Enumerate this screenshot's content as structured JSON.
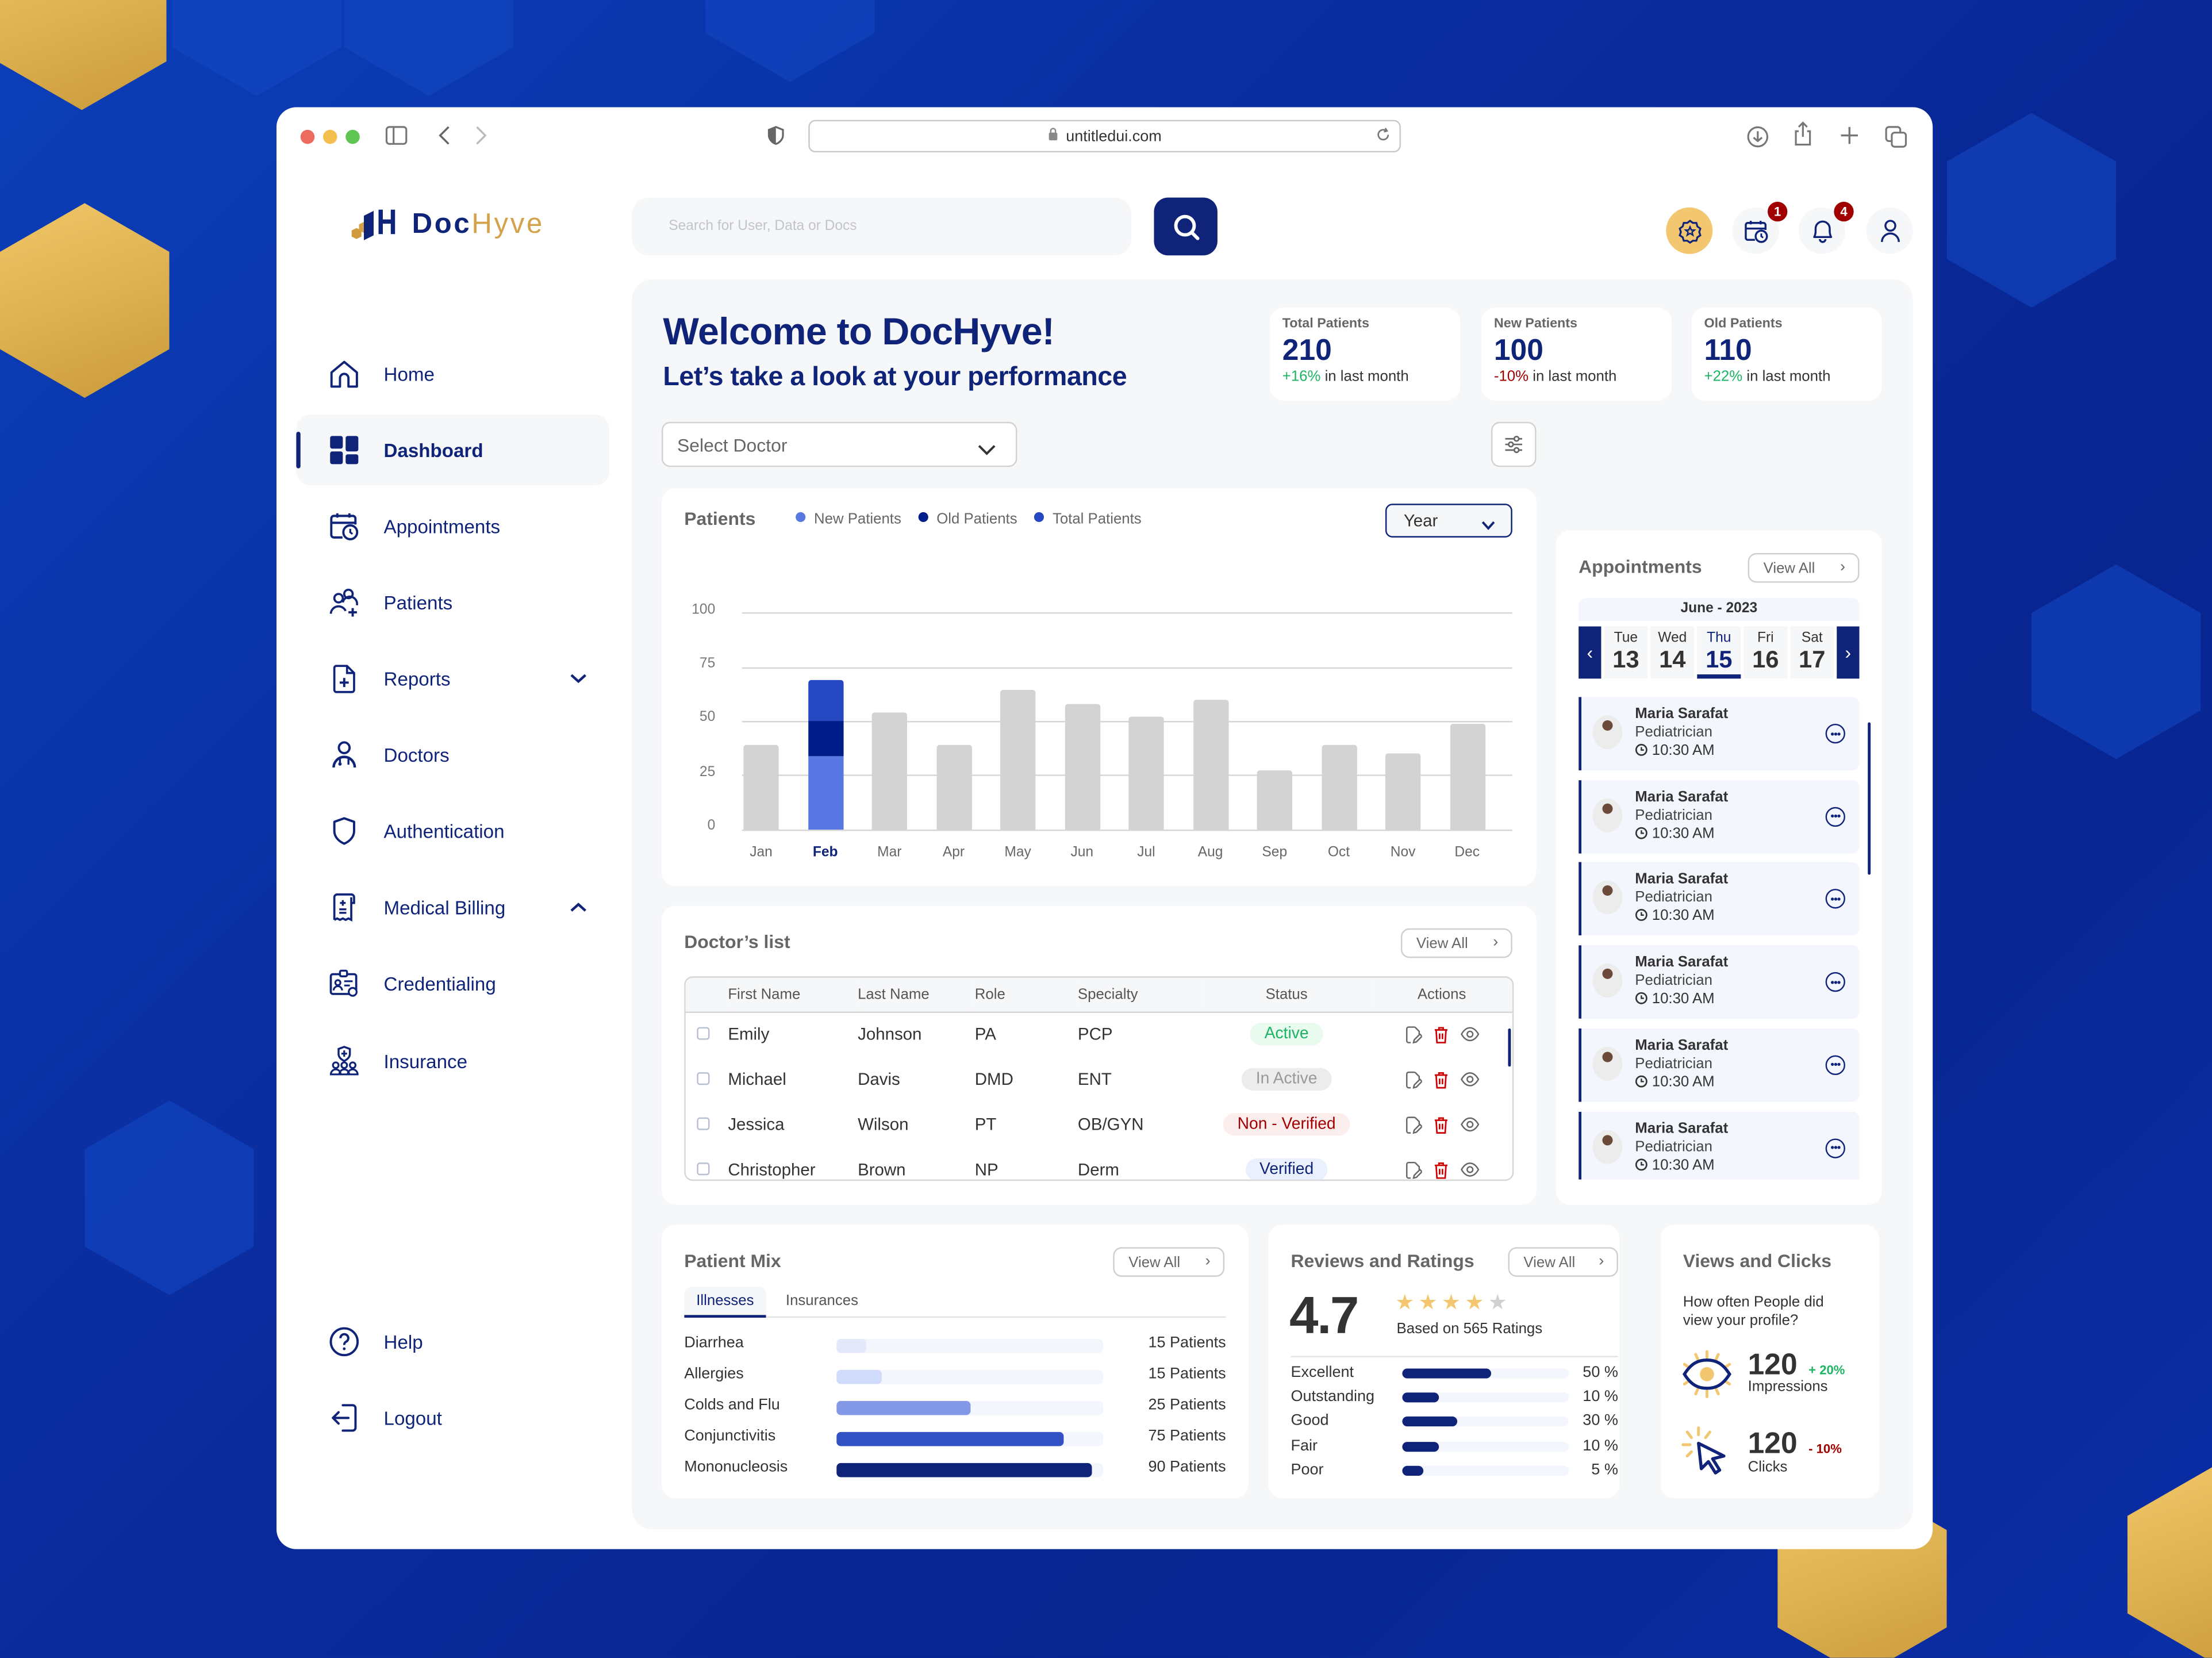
{
  "browser": {
    "url": "untitledui.com",
    "icons": [
      "sidebar-toggle-icon",
      "back-icon",
      "forward-icon",
      "shield-icon",
      "lock-icon",
      "reload-icon",
      "download-icon",
      "share-icon",
      "new-tab-icon",
      "tabs-overview-icon"
    ]
  },
  "app": {
    "logo_doc": "Doc",
    "logo_hyve": "Hyve",
    "search_placeholder": "Search for User, Data or Docs",
    "header_icons": [
      {
        "name": "premium-badge-icon",
        "badge": null
      },
      {
        "name": "calendar-clock-icon",
        "badge": "1"
      },
      {
        "name": "bell-icon",
        "badge": "4"
      },
      {
        "name": "user-icon",
        "badge": null
      }
    ],
    "colors": {
      "primary": "#0f2479",
      "gold": "#f3c76f",
      "positive": "#1db464",
      "negative": "#a10000"
    }
  },
  "sidebar": {
    "items": [
      {
        "label": "Home",
        "icon": "home-icon"
      },
      {
        "label": "Dashboard",
        "icon": "dashboard-icon",
        "active": true
      },
      {
        "label": "Appointments",
        "icon": "calendar-clock-icon"
      },
      {
        "label": "Patients",
        "icon": "patients-icon"
      },
      {
        "label": "Reports",
        "icon": "report-icon",
        "chevron": "down"
      },
      {
        "label": "Doctors",
        "icon": "doctor-icon"
      },
      {
        "label": "Authentication",
        "icon": "shield-icon"
      },
      {
        "label": "Medical Billing",
        "icon": "billing-icon",
        "chevron": "up"
      },
      {
        "label": "Credentialing",
        "icon": "credential-icon"
      },
      {
        "label": "Insurance",
        "icon": "insurance-icon"
      }
    ],
    "bottom": [
      {
        "label": "Help",
        "icon": "help-icon"
      },
      {
        "label": "Logout",
        "icon": "logout-icon"
      }
    ]
  },
  "welcome": {
    "title": "Welcome to DocHyve!",
    "subtitle": "Let’s take a look at your performance"
  },
  "stats": [
    {
      "label": "Total Patients",
      "value": "210",
      "change": "+16%",
      "suffix": " in last month",
      "trend": "pos"
    },
    {
      "label": "New Patients",
      "value": "100",
      "change": "-10%",
      "suffix": " in last month",
      "trend": "neg"
    },
    {
      "label": "Old Patients",
      "value": "110",
      "change": "+22%",
      "suffix": " in last month",
      "trend": "pos"
    }
  ],
  "select_doctor": {
    "placeholder": "Select Doctor"
  },
  "patients_chart": {
    "title": "Patients",
    "period": "Year",
    "legend": [
      {
        "label": "New Patients",
        "color": "#5a78e3"
      },
      {
        "label": "Old Patients",
        "color": "#001e8a"
      },
      {
        "label": "Total Patients",
        "color": "#2547c2"
      }
    ],
    "y_ticks": [
      "100",
      "75",
      "50",
      "25",
      "0"
    ]
  },
  "chart_data": {
    "type": "bar",
    "title": "Patients",
    "categories": [
      "Jan",
      "Feb",
      "Mar",
      "Apr",
      "May",
      "Jun",
      "Jul",
      "Aug",
      "Sep",
      "Oct",
      "Nov",
      "Dec"
    ],
    "values": [
      39,
      69,
      54,
      39,
      64,
      58,
      52,
      60,
      27,
      39,
      35,
      49
    ],
    "highlight": {
      "category": "Feb",
      "segments": [
        {
          "name": "New Patients",
          "value": 34
        },
        {
          "name": "Old Patients",
          "value": 16
        },
        {
          "name": "Total Patients",
          "value": 19
        }
      ]
    },
    "series_legend": [
      "New Patients",
      "Old Patients",
      "Total Patients"
    ],
    "xlabel": "",
    "ylabel": "",
    "ylim": [
      0,
      100
    ],
    "y_ticks": [
      0,
      25,
      50,
      75,
      100
    ],
    "grid": true,
    "legend_position": "top"
  },
  "doctors_list": {
    "title": "Doctor’s list",
    "view_all": "View All",
    "columns": [
      "First Name",
      "Last Name",
      "Role",
      "Specialty",
      "Status",
      "Actions"
    ],
    "rows": [
      {
        "first": "Emily",
        "last": "Johnson",
        "role": "PA",
        "specialty": "PCP",
        "status": "Active",
        "status_type": "active"
      },
      {
        "first": "Michael",
        "last": "Davis",
        "role": "DMD",
        "specialty": "ENT",
        "status": "In Active",
        "status_type": "inactive"
      },
      {
        "first": "Jessica",
        "last": "Wilson",
        "role": "PT",
        "specialty": "OB/GYN",
        "status": "Non - Verified",
        "status_type": "nonverified"
      },
      {
        "first": "Christopher",
        "last": "Brown",
        "role": "NP",
        "specialty": "Derm",
        "status": "Verified",
        "status_type": "verified"
      }
    ]
  },
  "appointments": {
    "title": "Appointments",
    "view_all": "View All",
    "month": "June - 2023",
    "days": [
      {
        "name": "Tue",
        "date": "13"
      },
      {
        "name": "Wed",
        "date": "14"
      },
      {
        "name": "Thu",
        "date": "15",
        "selected": true
      },
      {
        "name": "Fri",
        "date": "16"
      },
      {
        "name": "Sat",
        "date": "17"
      }
    ],
    "items": [
      {
        "name": "Maria Sarafat",
        "specialty": "Pediatrician",
        "time": "10:30 AM"
      },
      {
        "name": "Maria Sarafat",
        "specialty": "Pediatrician",
        "time": "10:30 AM"
      },
      {
        "name": "Maria Sarafat",
        "specialty": "Pediatrician",
        "time": "10:30 AM"
      },
      {
        "name": "Maria Sarafat",
        "specialty": "Pediatrician",
        "time": "10:30 AM"
      },
      {
        "name": "Maria Sarafat",
        "specialty": "Pediatrician",
        "time": "10:30 AM"
      },
      {
        "name": "Maria Sarafat",
        "specialty": "Pediatrician",
        "time": "10:30 AM"
      },
      {
        "name": "Maria Sarafat",
        "specialty": "Pediatrician",
        "time": "10:30 AM"
      },
      {
        "name": "Maria Sarafat",
        "specialty": "Pediatrician",
        "time": "10:30 AM"
      }
    ]
  },
  "patient_mix": {
    "title": "Patient Mix",
    "view_all": "View All",
    "tabs": [
      "Illnesses",
      "Insurances"
    ],
    "active_tab": "Illnesses",
    "rows": [
      {
        "label": "Diarrhea",
        "count": "15 Patients",
        "pct": 11,
        "color": "#e3e9fb"
      },
      {
        "label": "Allergies",
        "count": "15 Patients",
        "pct": 17,
        "color": "#d1dbfb"
      },
      {
        "label": "Colds and Flu",
        "count": "25 Patients",
        "pct": 50,
        "color": "#8399e8"
      },
      {
        "label": "Conjunctivitis",
        "count": "75 Patients",
        "pct": 85,
        "color": "#3151c5"
      },
      {
        "label": "Mononucleosis",
        "count": "90 Patients",
        "pct": 96,
        "color": "#0f2479"
      }
    ]
  },
  "reviews": {
    "title": "Reviews and Ratings",
    "view_all": "View All",
    "score": "4.7",
    "stars_filled": 4,
    "based_on": "Based on 565 Ratings",
    "rows": [
      {
        "label": "Excellent",
        "pct": "50 %",
        "fill": 53
      },
      {
        "label": "Outstanding",
        "pct": "10 %",
        "fill": 22
      },
      {
        "label": "Good",
        "pct": "30 %",
        "fill": 33
      },
      {
        "label": "Fair",
        "pct": "10 %",
        "fill": 22
      },
      {
        "label": "Poor",
        "pct": "5 %",
        "fill": 13
      }
    ]
  },
  "views_clicks": {
    "title": "Views and Clicks",
    "question": "How often People did view your profile?",
    "impressions": {
      "value": "120",
      "change": "+ 20%",
      "label": "Impressions"
    },
    "clicks": {
      "value": "120",
      "change": "- 10%",
      "label": "Clicks"
    }
  }
}
